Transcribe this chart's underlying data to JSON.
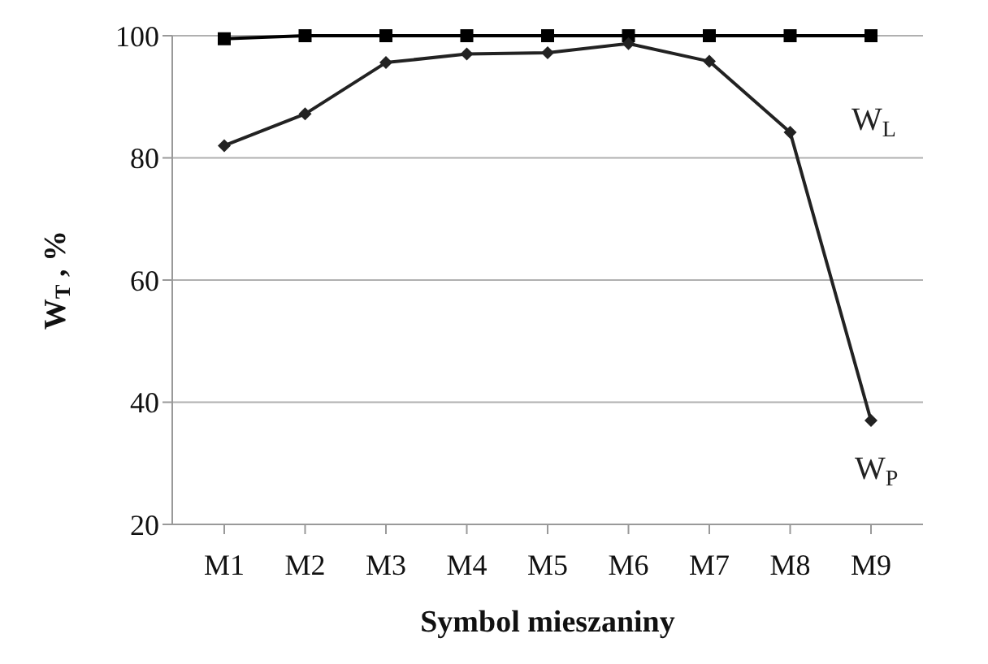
{
  "chart_data": {
    "type": "line",
    "xlabel": "Symbol mieszaniny",
    "ylabel": "W$_{T}$ , %",
    "categories": [
      "M1",
      "M2",
      "M3",
      "M4",
      "M5",
      "M6",
      "M7",
      "M8",
      "M9"
    ],
    "series": [
      {
        "name": "W$_{L}$",
        "color": "#000000",
        "marker": "square",
        "values": [
          99.5,
          100,
          100,
          100,
          100,
          100,
          100,
          100,
          100
        ]
      },
      {
        "name": "W$_{P}$",
        "color": "#222222",
        "marker": "diamond",
        "values": [
          82,
          87.2,
          95.6,
          97,
          97.2,
          98.7,
          95.8,
          84.2,
          37
        ]
      }
    ],
    "ylim": [
      20,
      100
    ],
    "yticks": [
      20,
      40,
      60,
      80,
      100
    ],
    "grid": "y",
    "legend": false
  }
}
